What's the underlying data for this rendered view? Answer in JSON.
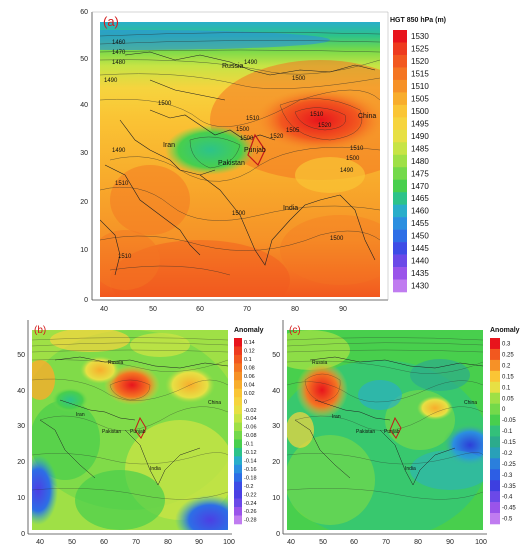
{
  "panel_a": {
    "letter": "(a)",
    "colorbar_title": "HGT 850 hPa (m)",
    "colorbar_values": [
      "1530",
      "1525",
      "1520",
      "1515",
      "1510",
      "1505",
      "1500",
      "1495",
      "1490",
      "1485",
      "1480",
      "1475",
      "1470",
      "1465",
      "1460",
      "1455",
      "1450",
      "1445",
      "1440",
      "1435",
      "1430"
    ],
    "colorbar_colors": [
      "#e8141c",
      "#ee3b1e",
      "#f2581f",
      "#f47522",
      "#f69127",
      "#f8ad2c",
      "#fac535",
      "#f6d43e",
      "#e7e044",
      "#c7e445",
      "#9fe046",
      "#74d94a",
      "#48cf4d",
      "#2cc38a",
      "#29aeca",
      "#2b8fe0",
      "#2d6ee6",
      "#3d4ce6",
      "#6b49e8",
      "#9a54ea",
      "#c07cf0"
    ],
    "y_ticks": [
      "0",
      "10",
      "20",
      "30",
      "40",
      "50",
      "60"
    ],
    "x_ticks": [
      "40",
      "50",
      "60",
      "70",
      "80",
      "90"
    ],
    "contour_labels": [
      "1460",
      "1470",
      "1480",
      "1490",
      "1490",
      "1500",
      "1500",
      "1510",
      "1520",
      "1510",
      "1500",
      "1500",
      "1490",
      "1510",
      "1500",
      "1500",
      "1510",
      "1505",
      "1520",
      "1510",
      "1500",
      "1490"
    ],
    "places": [
      "Russia",
      "Iran",
      "Punjab",
      "Pakistan",
      "India",
      "China"
    ]
  },
  "panel_b": {
    "letter": "(b)",
    "colorbar_title": "Anomaly",
    "colorbar_values": [
      "0.14",
      "0.12",
      "0.1",
      "0.08",
      "0.06",
      "0.04",
      "0.02",
      "0",
      "-0.02",
      "-0.04",
      "-0.06",
      "-0.08",
      "-0.1",
      "-0.12",
      "-0.14",
      "-0.16",
      "-0.18",
      "-0.2",
      "-0.22",
      "-0.24",
      "-0.26",
      "-0.28"
    ],
    "colorbar_colors": [
      "#e8141c",
      "#ee3b1e",
      "#f2581f",
      "#f47522",
      "#f69127",
      "#f8ad2c",
      "#fac535",
      "#f6d43e",
      "#e7e044",
      "#c7e445",
      "#9fe046",
      "#74d94a",
      "#48cf4d",
      "#2cc38a",
      "#29aeca",
      "#2b8fe0",
      "#2d6ee6",
      "#3d4ce6",
      "#4c3fe4",
      "#6b49e8",
      "#9a54ea",
      "#c07cf0"
    ],
    "y_ticks": [
      "0",
      "10",
      "20",
      "30",
      "40",
      "50"
    ],
    "x_ticks": [
      "40",
      "50",
      "60",
      "70",
      "80",
      "90",
      "100"
    ],
    "places": [
      "Russia",
      "Iran",
      "Punjab",
      "Pakistan",
      "India",
      "China"
    ]
  },
  "panel_c": {
    "letter": "(c)",
    "colorbar_title": "Anomaly",
    "colorbar_values": [
      "0.3",
      "0.25",
      "0.2",
      "0.15",
      "0.1",
      "0.05",
      "0",
      "-0.05",
      "-0.1",
      "-0.15",
      "-0.2",
      "-0.25",
      "-0.3",
      "-0.35",
      "-0.4",
      "-0.45",
      "-0.5"
    ],
    "colorbar_colors": [
      "#e8141c",
      "#f2581f",
      "#f69127",
      "#fac535",
      "#e7e044",
      "#9fe046",
      "#74d94a",
      "#48cf4d",
      "#33c07a",
      "#2cab8c",
      "#29a0b8",
      "#2b7fdc",
      "#2d5ee4",
      "#3d3fe0",
      "#6b49e8",
      "#9a54ea",
      "#c07cf0"
    ],
    "y_ticks": [
      "0",
      "10",
      "20",
      "30",
      "40",
      "50"
    ],
    "x_ticks": [
      "40",
      "50",
      "60",
      "70",
      "80",
      "90",
      "100"
    ],
    "places": [
      "Russia",
      "Iran",
      "Punjab",
      "Pakistan",
      "India",
      "China"
    ]
  }
}
